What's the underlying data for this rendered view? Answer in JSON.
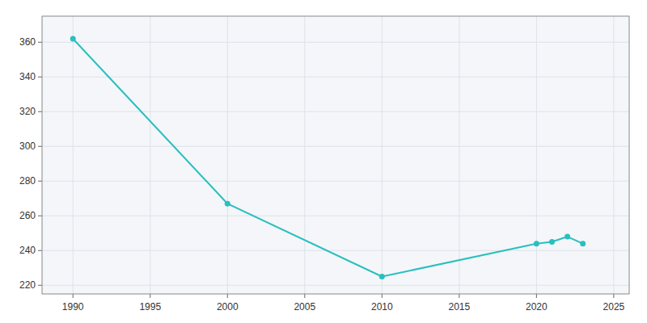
{
  "chart_data": {
    "type": "line",
    "x": [
      1990,
      2000,
      2010,
      2020,
      2021,
      2022,
      2023
    ],
    "values": [
      362,
      267,
      225,
      244,
      245,
      248,
      244
    ],
    "color": "#2abfbf",
    "marker": "circle",
    "xlim": [
      1988,
      2026
    ],
    "ylim": [
      215,
      375
    ],
    "xticks": [
      1990,
      1995,
      2000,
      2005,
      2010,
      2015,
      2020,
      2025
    ],
    "yticks": [
      220,
      240,
      260,
      280,
      300,
      320,
      340,
      360
    ],
    "grid": true
  }
}
